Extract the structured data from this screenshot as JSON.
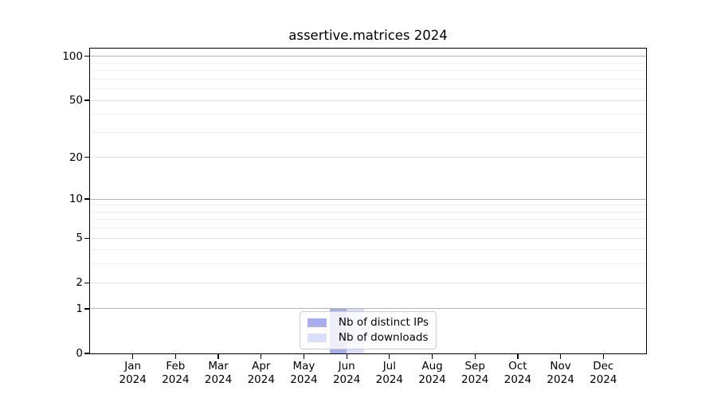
{
  "page": {
    "background": "#ffffff"
  },
  "chart_data": {
    "type": "bar",
    "title": "assertive.matrices 2024",
    "x_categories": [
      {
        "month": "Jan",
        "year": "2024"
      },
      {
        "month": "Feb",
        "year": "2024"
      },
      {
        "month": "Mar",
        "year": "2024"
      },
      {
        "month": "Apr",
        "year": "2024"
      },
      {
        "month": "May",
        "year": "2024"
      },
      {
        "month": "Jun",
        "year": "2024"
      },
      {
        "month": "Jul",
        "year": "2024"
      },
      {
        "month": "Aug",
        "year": "2024"
      },
      {
        "month": "Sep",
        "year": "2024"
      },
      {
        "month": "Oct",
        "year": "2024"
      },
      {
        "month": "Nov",
        "year": "2024"
      },
      {
        "month": "Dec",
        "year": "2024"
      }
    ],
    "series": [
      {
        "name": "Nb of distinct IPs",
        "color": "#a8aeec",
        "values": [
          0,
          0,
          0,
          0,
          0,
          1,
          0,
          0,
          0,
          0,
          0,
          0
        ]
      },
      {
        "name": "Nb of downloads",
        "color": "#dadef9",
        "values": [
          0,
          0,
          0,
          0,
          0,
          1,
          0,
          0,
          0,
          0,
          0,
          0
        ]
      }
    ],
    "y_axis": {
      "scale": "log1p",
      "ticks": [
        0,
        1,
        2,
        5,
        10,
        20,
        50,
        100
      ],
      "power_ticks": [
        1,
        10,
        100
      ],
      "minor_ticks": [
        3,
        4,
        6,
        7,
        8,
        9,
        30,
        40,
        60,
        70,
        80,
        90
      ],
      "max": 113
    },
    "xlabel": "",
    "ylabel": "",
    "grid": true,
    "legend_position": "lower-center",
    "colors": {
      "grid_power": "#b4b4b4",
      "grid_major": "#e0e0e0",
      "grid_minor": "#f0f0f0",
      "axis": "#000000"
    }
  }
}
